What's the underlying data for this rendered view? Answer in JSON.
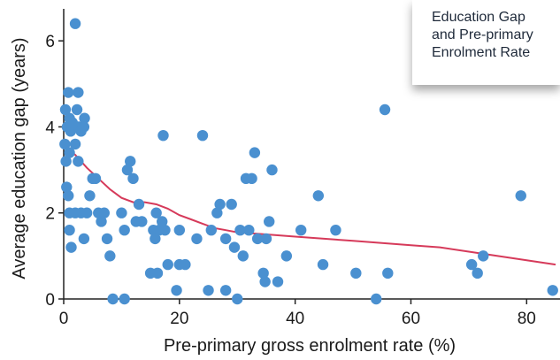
{
  "chart_data": {
    "type": "scatter",
    "xlabel": "Pre-primary gross enrolment rate (%)",
    "ylabel": "Average education gap (years)",
    "xlim": [
      0,
      85
    ],
    "ylim": [
      0,
      6.6
    ],
    "xticks": [
      0,
      20,
      40,
      60,
      80
    ],
    "yticks": [
      0,
      2,
      4,
      6
    ],
    "grid": false,
    "colors": {
      "points": "#4a90d0",
      "trend": "#d63a5a"
    },
    "legend": {
      "placement": "top-right",
      "lines": [
        "Education Gap",
        "and Pre-primary",
        "Enrolment Rate"
      ]
    },
    "points": [
      [
        0.3,
        4.4
      ],
      [
        0.6,
        4.0
      ],
      [
        0.8,
        4.8
      ],
      [
        1.0,
        4.2
      ],
      [
        1.2,
        3.9
      ],
      [
        1.5,
        4.1
      ],
      [
        2.0,
        6.4
      ],
      [
        2.3,
        4.4
      ],
      [
        2.5,
        4.8
      ],
      [
        2.6,
        4.0
      ],
      [
        3.0,
        3.9
      ],
      [
        3.5,
        4.0
      ],
      [
        3.6,
        4.2
      ],
      [
        0.2,
        3.6
      ],
      [
        0.4,
        3.2
      ],
      [
        1.0,
        3.4
      ],
      [
        2.0,
        3.6
      ],
      [
        2.5,
        3.2
      ],
      [
        0.5,
        2.6
      ],
      [
        0.8,
        2.4
      ],
      [
        1.0,
        2.0
      ],
      [
        2.0,
        2.0
      ],
      [
        3.0,
        2.0
      ],
      [
        4.0,
        2.0
      ],
      [
        4.5,
        2.4
      ],
      [
        5.0,
        2.8
      ],
      [
        5.5,
        2.8
      ],
      [
        6.0,
        2.0
      ],
      [
        1.0,
        1.6
      ],
      [
        1.3,
        1.2
      ],
      [
        3.5,
        1.4
      ],
      [
        6.5,
        1.8
      ],
      [
        7.0,
        2.0
      ],
      [
        7.5,
        1.4
      ],
      [
        8.0,
        1.0
      ],
      [
        8.5,
        0.0
      ],
      [
        10.0,
        2.0
      ],
      [
        10.5,
        1.6
      ],
      [
        11.0,
        3.0
      ],
      [
        11.5,
        3.2
      ],
      [
        12.0,
        2.8
      ],
      [
        12.5,
        1.8
      ],
      [
        13.0,
        2.2
      ],
      [
        13.5,
        1.8
      ],
      [
        15.0,
        0.6
      ],
      [
        15.5,
        1.6
      ],
      [
        15.8,
        1.4
      ],
      [
        16.0,
        2.0
      ],
      [
        16.2,
        0.6
      ],
      [
        16.5,
        1.6
      ],
      [
        17.0,
        1.8
      ],
      [
        17.2,
        3.8
      ],
      [
        17.5,
        1.6
      ],
      [
        18.0,
        0.8
      ],
      [
        19.5,
        0.2
      ],
      [
        20.0,
        0.8
      ],
      [
        20.0,
        1.6
      ],
      [
        21.0,
        0.8
      ],
      [
        10.5,
        0.0
      ],
      [
        23.0,
        1.4
      ],
      [
        24.0,
        3.8
      ],
      [
        25.0,
        0.2
      ],
      [
        25.5,
        1.6
      ],
      [
        26.5,
        2.0
      ],
      [
        27.0,
        2.2
      ],
      [
        28.0,
        1.4
      ],
      [
        28.0,
        0.2
      ],
      [
        29.0,
        2.2
      ],
      [
        29.5,
        1.2
      ],
      [
        30.0,
        0.0
      ],
      [
        30.5,
        1.6
      ],
      [
        31.0,
        1.0
      ],
      [
        31.5,
        2.8
      ],
      [
        32.0,
        1.6
      ],
      [
        32.5,
        2.8
      ],
      [
        33.0,
        3.4
      ],
      [
        33.5,
        1.4
      ],
      [
        34.5,
        0.6
      ],
      [
        34.8,
        0.4
      ],
      [
        35.0,
        1.4
      ],
      [
        35.5,
        1.8
      ],
      [
        36.0,
        3.0
      ],
      [
        37.0,
        0.4
      ],
      [
        38.5,
        1.0
      ],
      [
        41.0,
        1.6
      ],
      [
        44.0,
        2.4
      ],
      [
        44.8,
        0.8
      ],
      [
        47.0,
        1.6
      ],
      [
        50.5,
        0.6
      ],
      [
        54.0,
        0.0
      ],
      [
        55.5,
        4.4
      ],
      [
        56.0,
        0.6
      ],
      [
        70.5,
        0.8
      ],
      [
        71.5,
        0.6
      ],
      [
        72.5,
        1.0
      ],
      [
        79.0,
        2.4
      ],
      [
        84.5,
        0.2
      ]
    ],
    "trend": [
      [
        0,
        3.55
      ],
      [
        2,
        3.35
      ],
      [
        4,
        3.05
      ],
      [
        6,
        2.8
      ],
      [
        8,
        2.55
      ],
      [
        10,
        2.35
      ],
      [
        12,
        2.25
      ],
      [
        14,
        2.25
      ],
      [
        16,
        2.2
      ],
      [
        18,
        2.1
      ],
      [
        20,
        1.95
      ],
      [
        22,
        1.85
      ],
      [
        24,
        1.75
      ],
      [
        26,
        1.65
      ],
      [
        28,
        1.6
      ],
      [
        30,
        1.55
      ],
      [
        35,
        1.5
      ],
      [
        40,
        1.45
      ],
      [
        45,
        1.4
      ],
      [
        50,
        1.35
      ],
      [
        55,
        1.3
      ],
      [
        60,
        1.25
      ],
      [
        65,
        1.2
      ],
      [
        70,
        1.1
      ],
      [
        75,
        1.0
      ],
      [
        80,
        0.9
      ],
      [
        85,
        0.8
      ]
    ]
  }
}
